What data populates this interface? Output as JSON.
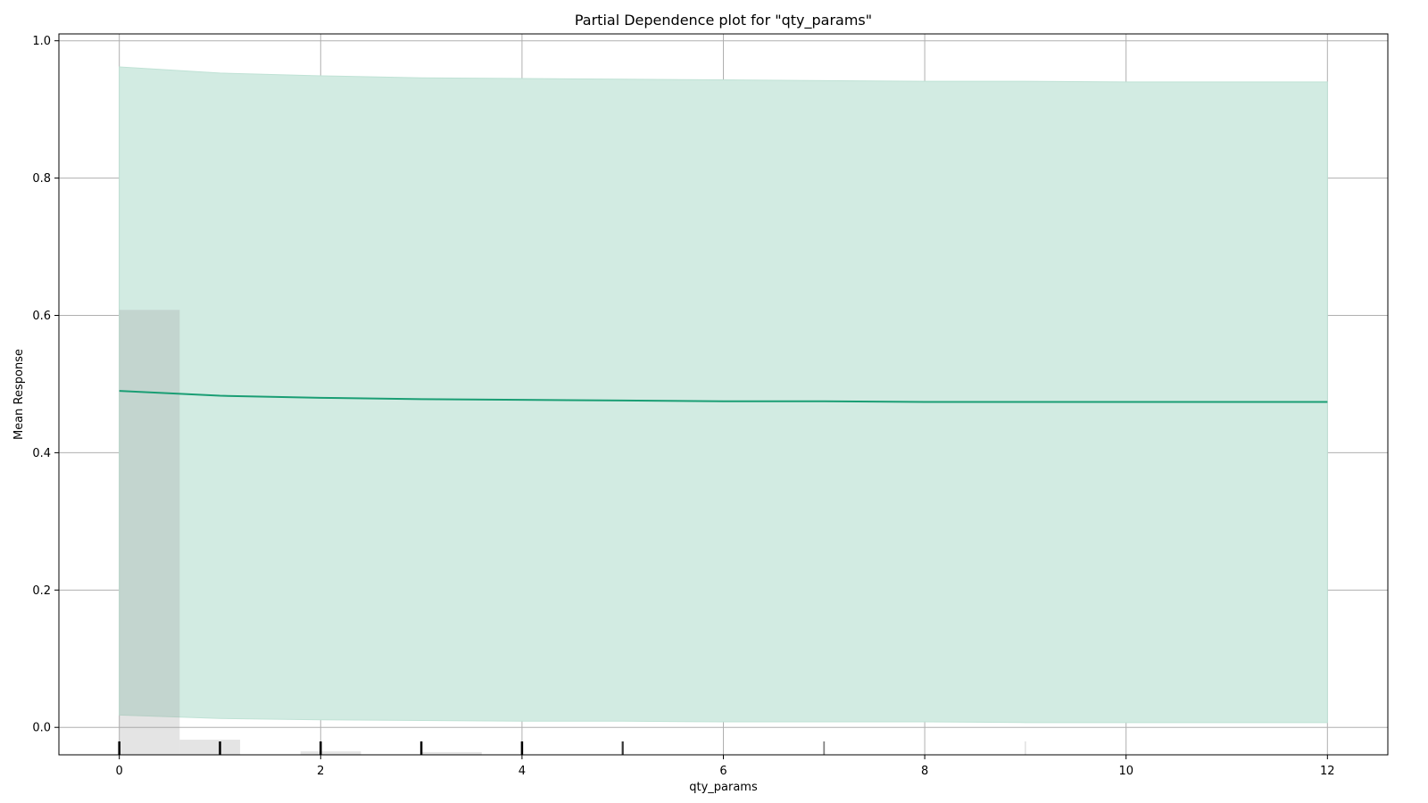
{
  "chart_data": {
    "type": "line",
    "title": "Partial Dependence plot for \"qty_params\"",
    "xlabel": "qty_params",
    "ylabel": "Mean Response",
    "xlim": [
      -0.6,
      12.6
    ],
    "ylim": [
      -0.04,
      1.01
    ],
    "grid": true,
    "x_ticks": [
      0,
      2,
      4,
      6,
      8,
      10,
      12
    ],
    "y_ticks": [
      0.0,
      0.2,
      0.4,
      0.6,
      0.8,
      1.0
    ],
    "x": [
      0,
      1,
      2,
      3,
      4,
      5,
      6,
      7,
      8,
      9,
      10,
      11,
      12
    ],
    "series": [
      {
        "values": [
          0.49,
          0.483,
          0.48,
          0.478,
          0.477,
          0.476,
          0.475,
          0.475,
          0.474,
          0.474,
          0.474,
          0.474,
          0.474
        ],
        "upper": [
          0.962,
          0.953,
          0.949,
          0.946,
          0.945,
          0.944,
          0.943,
          0.942,
          0.941,
          0.941,
          0.94,
          0.94,
          0.94
        ],
        "lower": [
          0.018,
          0.013,
          0.011,
          0.01,
          0.009,
          0.009,
          0.008,
          0.008,
          0.008,
          0.007,
          0.007,
          0.007,
          0.007
        ]
      }
    ],
    "histogram": {
      "bins": [
        {
          "x0": 0.0,
          "x1": 0.6,
          "value": 0.608
        },
        {
          "x0": 0.6,
          "x1": 1.2,
          "value": -0.018
        },
        {
          "x0": 1.8,
          "x1": 2.4,
          "value": -0.035
        },
        {
          "x0": 3.0,
          "x1": 3.6,
          "value": -0.036
        }
      ]
    },
    "rug": [
      {
        "x": 0,
        "weight": 1.0
      },
      {
        "x": 1,
        "weight": 1.0
      },
      {
        "x": 2,
        "weight": 1.0
      },
      {
        "x": 3,
        "weight": 1.0
      },
      {
        "x": 4,
        "weight": 1.0
      },
      {
        "x": 5,
        "weight": 0.8
      },
      {
        "x": 7,
        "weight": 0.5
      },
      {
        "x": 9,
        "weight": 0.15
      }
    ],
    "colors": {
      "line": "#1a9e74",
      "band": "#d2ebe2",
      "band_edge": "#bfe2d5",
      "histogram": "#9e9e9e",
      "grid": "#b0b0b0",
      "rug": "#000000"
    }
  }
}
